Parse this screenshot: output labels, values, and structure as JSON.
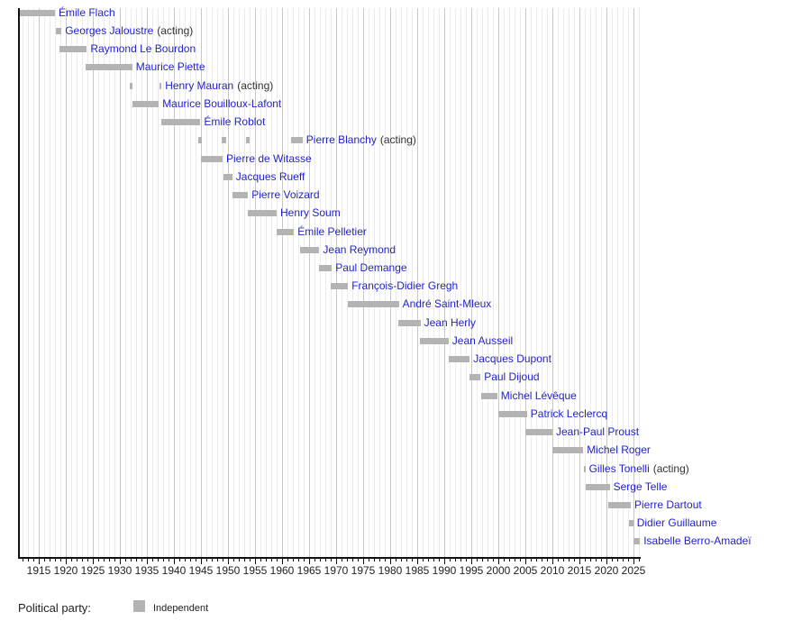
{
  "chart_data": {
    "type": "gantt-timeline",
    "x_axis": {
      "range": [
        1911.5,
        2026.33
      ],
      "tick_labels": [
        "1915",
        "1920",
        "1925",
        "1930",
        "1935",
        "1940",
        "1945",
        "1950",
        "1955",
        "1960",
        "1965",
        "1970",
        "1975",
        "1980",
        "1985",
        "1990",
        "1995",
        "2000",
        "2005",
        "2010",
        "2015",
        "2020",
        "2025"
      ],
      "minor_tick_every_years": 1,
      "major_tick_every_years": 5,
      "grid": "on"
    },
    "acting_suffix": "(acting)",
    "rows": [
      {
        "name": "Émile Flach",
        "acting": false,
        "party": "Independent",
        "terms": [
          [
            1911.5,
            1918.0
          ]
        ]
      },
      {
        "name": "Georges Jaloustre",
        "acting": true,
        "party": "Independent",
        "terms": [
          [
            1918.1,
            1919.2
          ]
        ]
      },
      {
        "name": "Raymond Le Bourdon",
        "acting": false,
        "party": "Independent",
        "terms": [
          [
            1918.9,
            1923.9
          ]
        ]
      },
      {
        "name": "Maurice Piette",
        "acting": false,
        "party": "Independent",
        "terms": [
          [
            1923.65,
            1932.3
          ]
        ]
      },
      {
        "name": "Henry Mauran",
        "acting": true,
        "party": "Independent",
        "terms": [
          [
            1931.75,
            1932.4
          ],
          [
            1937.25,
            1937.7
          ]
        ]
      },
      {
        "name": "Maurice Bouilloux-Lafont",
        "acting": false,
        "party": "Independent",
        "terms": [
          [
            1932.3,
            1937.2
          ]
        ]
      },
      {
        "name": "Émile Roblot",
        "acting": false,
        "party": "Independent",
        "terms": [
          [
            1937.6,
            1944.9
          ]
        ]
      },
      {
        "name": "Pierre Blanchy",
        "acting": true,
        "party": "Independent",
        "terms": [
          [
            1944.5,
            1945.2
          ],
          [
            1948.8,
            1949.6
          ],
          [
            1953.3,
            1954.0
          ],
          [
            1961.7,
            1963.8
          ]
        ]
      },
      {
        "name": "Pierre de Witasse",
        "acting": false,
        "party": "Independent",
        "terms": [
          [
            1945.0,
            1949.0
          ]
        ]
      },
      {
        "name": "Jacques Rueff",
        "acting": false,
        "party": "Independent",
        "terms": [
          [
            1949.2,
            1950.8
          ]
        ]
      },
      {
        "name": "Pierre Voizard",
        "acting": false,
        "party": "Independent",
        "terms": [
          [
            1950.8,
            1953.7
          ]
        ]
      },
      {
        "name": "Henry Soum",
        "acting": false,
        "party": "Independent",
        "terms": [
          [
            1953.7,
            1959.0
          ]
        ]
      },
      {
        "name": "Émile Pelletier",
        "acting": false,
        "party": "Independent",
        "terms": [
          [
            1959.0,
            1962.2
          ]
        ]
      },
      {
        "name": "Jean Reymond",
        "acting": false,
        "party": "Independent",
        "terms": [
          [
            1963.3,
            1966.9
          ]
        ]
      },
      {
        "name": "Paul Demange",
        "acting": false,
        "party": "Independent",
        "terms": [
          [
            1966.9,
            1969.2
          ]
        ]
      },
      {
        "name": "François-Didier Gregh",
        "acting": false,
        "party": "Independent",
        "terms": [
          [
            1969.0,
            1972.2
          ]
        ]
      },
      {
        "name": "André Saint-Mleux",
        "acting": false,
        "party": "Independent",
        "terms": [
          [
            1972.2,
            1981.6
          ]
        ]
      },
      {
        "name": "Jean Herly",
        "acting": false,
        "party": "Independent",
        "terms": [
          [
            1981.5,
            1985.6
          ]
        ]
      },
      {
        "name": "Jean Ausseil",
        "acting": false,
        "party": "Independent",
        "terms": [
          [
            1985.5,
            1990.8
          ]
        ]
      },
      {
        "name": "Jacques Dupont",
        "acting": false,
        "party": "Independent",
        "terms": [
          [
            1990.8,
            1994.7
          ]
        ]
      },
      {
        "name": "Paul Dijoud",
        "acting": false,
        "party": "Independent",
        "terms": [
          [
            1994.7,
            1996.7
          ]
        ]
      },
      {
        "name": "Michel Lévêque",
        "acting": false,
        "party": "Independent",
        "terms": [
          [
            1996.8,
            1999.8
          ]
        ]
      },
      {
        "name": "Patrick Leclercq",
        "acting": false,
        "party": "Independent",
        "terms": [
          [
            2000.0,
            2005.3
          ]
        ]
      },
      {
        "name": "Jean-Paul Proust",
        "acting": false,
        "party": "Independent",
        "terms": [
          [
            2005.0,
            2010.0
          ]
        ]
      },
      {
        "name": "Michel Roger",
        "acting": false,
        "party": "Independent",
        "terms": [
          [
            2010.0,
            2015.7
          ]
        ]
      },
      {
        "name": "Gilles Tonelli",
        "acting": true,
        "party": "Independent",
        "terms": [
          [
            2015.75,
            2016.1
          ]
        ]
      },
      {
        "name": "Serge Telle",
        "acting": false,
        "party": "Independent",
        "terms": [
          [
            2016.1,
            2020.6
          ]
        ]
      },
      {
        "name": "Pierre Dartout",
        "acting": false,
        "party": "Independent",
        "terms": [
          [
            2020.3,
            2024.5
          ]
        ]
      },
      {
        "name": "Didier Guillaume",
        "acting": false,
        "party": "Independent",
        "terms": [
          [
            2024.2,
            2024.95
          ]
        ]
      },
      {
        "name": "Isabelle Berro-Amadeï",
        "acting": false,
        "party": "Independent",
        "terms": [
          [
            2024.95,
            2026.2
          ]
        ]
      }
    ],
    "legend": {
      "title": "Political party:",
      "items": [
        {
          "label": "Independent",
          "color": "#b3b3b3"
        }
      ]
    },
    "colors": {
      "bar": "#b3b3b3",
      "name_link": "#2323cd",
      "acting_text": "#333333",
      "axis": "#111111",
      "tick_label": "#222222",
      "grid_minor": "#ececec",
      "grid_major": "#c8c8c8",
      "background": "#ffffff"
    }
  }
}
